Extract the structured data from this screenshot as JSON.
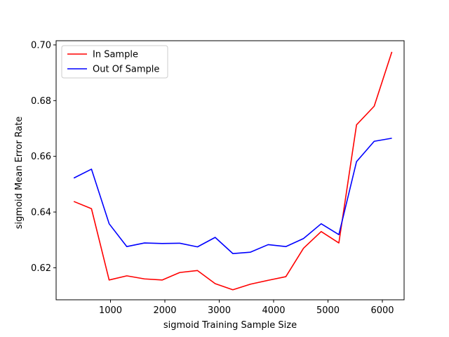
{
  "chart_data": {
    "type": "line",
    "title": "",
    "xlabel": "sigmoid Training Sample Size",
    "ylabel": "sigmoid Mean Error Rate",
    "xlim": [
      0,
      6400
    ],
    "ylim": [
      0.6085,
      0.7015
    ],
    "xticks": [
      1000,
      2000,
      3000,
      4000,
      5000,
      6000
    ],
    "yticks": [
      0.62,
      0.64,
      0.66,
      0.68,
      0.7
    ],
    "xtick_labels": [
      "1000",
      "2000",
      "3000",
      "4000",
      "5000",
      "6000"
    ],
    "ytick_labels": [
      "0.62",
      "0.64",
      "0.66",
      "0.68",
      "0.70"
    ],
    "grid": false,
    "legend_position": "top-left",
    "x": [
      325,
      650,
      975,
      1300,
      1625,
      1950,
      2275,
      2600,
      2925,
      3250,
      3575,
      3900,
      4225,
      4550,
      4875,
      5200,
      5525,
      5850,
      6175
    ],
    "series": [
      {
        "name": "In Sample",
        "color": "#ff0000",
        "values": [
          0.6438,
          0.6412,
          0.6156,
          0.6171,
          0.616,
          0.6156,
          0.6183,
          0.619,
          0.6143,
          0.6121,
          0.6141,
          0.6155,
          0.6168,
          0.627,
          0.633,
          0.6289,
          0.6713,
          0.678,
          0.6975
        ]
      },
      {
        "name": "Out Of Sample",
        "color": "#0000ff",
        "values": [
          0.6522,
          0.6554,
          0.6358,
          0.6276,
          0.6289,
          0.6287,
          0.6288,
          0.6275,
          0.6309,
          0.6251,
          0.6256,
          0.6283,
          0.6276,
          0.6305,
          0.6358,
          0.6319,
          0.6581,
          0.6654,
          0.6665
        ]
      }
    ]
  }
}
